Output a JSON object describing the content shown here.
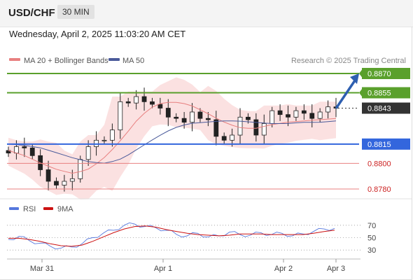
{
  "header": {
    "symbol": "USD/CHF",
    "timeframe": "30 MIN",
    "datetime": "Wednesday, April 2, 2025 11:03:20 AM CET"
  },
  "legend": {
    "ma20_label": "MA 20 + Bollinger Bands",
    "ma50_label": "MA 50",
    "credit": "Research © 2025 Trading Central"
  },
  "colors": {
    "ma20": "#e88080",
    "ma50": "#4a5a9a",
    "band_fill": "#fadcdc",
    "resistance": "#5aa02c",
    "support": "#3366dd",
    "weak_line": "#e88080",
    "arrow": "#2e5fb0",
    "current": "#333333",
    "rsi": "#5577dd",
    "rsi_ma": "#cc1111"
  },
  "chart_data": [
    {
      "type": "line",
      "title": "",
      "x_ticks": [
        "Mar 31",
        "Apr 1",
        "Apr 2",
        "Apr 3"
      ],
      "ylim": [
        0.8773,
        0.8879
      ],
      "grid": false,
      "legend_position": "top-left",
      "series": [
        {
          "name": "MA 20 + Bollinger Bands",
          "values": [
            0.881,
            0.8806,
            0.88,
            0.8795,
            0.8792,
            0.8796,
            0.8806,
            0.882,
            0.8836,
            0.8846,
            0.8848,
            0.8846,
            0.884,
            0.8833,
            0.8828,
            0.8827,
            0.883,
            0.8832,
            0.8833,
            0.8834,
            0.8835
          ]
        },
        {
          "name": "MA 50",
          "values": [
            0.8815,
            0.8814,
            0.8812,
            0.8808,
            0.8804,
            0.8801,
            0.88,
            0.8804,
            0.8812,
            0.882,
            0.8827,
            0.8831,
            0.8832,
            0.8833,
            0.8833,
            0.8832,
            0.8831,
            0.8831,
            0.8832,
            0.8832,
            0.8833
          ]
        }
      ],
      "price_close": [
        0.8808,
        0.8813,
        0.8812,
        0.8806,
        0.8795,
        0.8786,
        0.8783,
        0.8786,
        0.8788,
        0.8803,
        0.8813,
        0.8818,
        0.8818,
        0.8826,
        0.8848,
        0.8847,
        0.8852,
        0.8848,
        0.8846,
        0.8843,
        0.8836,
        0.8835,
        0.8832,
        0.884,
        0.8835,
        0.8834,
        0.8821,
        0.8818,
        0.8822,
        0.8836,
        0.8834,
        0.8822,
        0.8831,
        0.8841,
        0.8838,
        0.8836,
        0.8841,
        0.8839,
        0.8835,
        0.884,
        0.8844,
        0.8843
      ],
      "bands": {
        "upper_offset": 0.001,
        "lower_offset": 0.001
      },
      "levels": [
        {
          "value": 0.887,
          "label": "0.8870",
          "kind": "resistance"
        },
        {
          "value": 0.8855,
          "label": "0.8855",
          "kind": "resistance"
        },
        {
          "value": 0.8843,
          "label": "0.8843",
          "kind": "current"
        },
        {
          "value": 0.8815,
          "label": "0.8815",
          "kind": "support"
        },
        {
          "value": 0.88,
          "label": "0.8800",
          "kind": "weak"
        },
        {
          "value": 0.878,
          "label": "0.8780",
          "kind": "weak"
        }
      ],
      "forecast_target": 0.887
    },
    {
      "type": "line",
      "title": "",
      "ylim": [
        20,
        80
      ],
      "y_ticks": [
        70,
        50,
        30
      ],
      "legend_position": "top-left",
      "series": [
        {
          "name": "RSI",
          "values": [
            47,
            52,
            45,
            41,
            36,
            33,
            35,
            40,
            50,
            57,
            62,
            70,
            72,
            68,
            66,
            62,
            55,
            53,
            57,
            51,
            53,
            59,
            55,
            54,
            58,
            55,
            57,
            53,
            56,
            60,
            64,
            65
          ]
        },
        {
          "name": "9MA",
          "values": [
            49,
            49,
            47,
            44,
            40,
            37,
            36,
            38,
            44,
            51,
            58,
            64,
            68,
            69,
            67,
            63,
            60,
            57,
            55,
            54,
            53,
            54,
            56,
            56,
            56,
            55,
            55,
            55,
            55,
            57,
            60,
            62
          ]
        }
      ]
    }
  ]
}
